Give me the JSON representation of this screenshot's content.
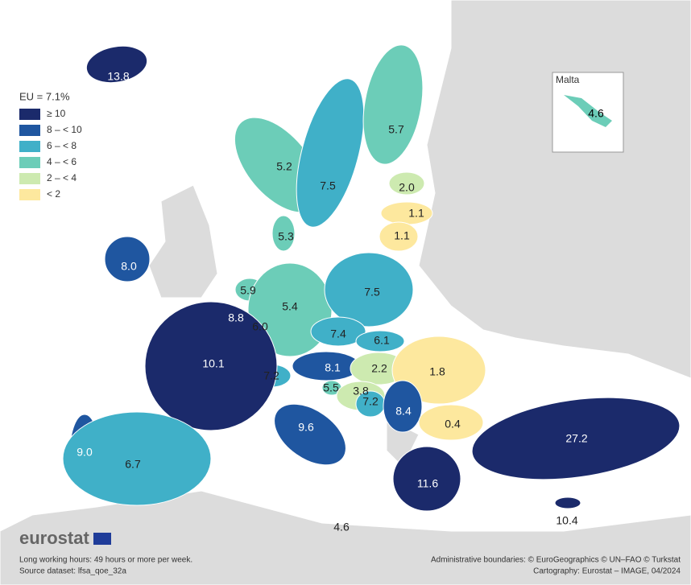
{
  "legend": {
    "title": "EU = 7.1%",
    "classes": [
      {
        "label": "≥ 10",
        "color": "#1b2a6b"
      },
      {
        "label": "8 – < 10",
        "color": "#1f56a0"
      },
      {
        "label": "6 – < 8",
        "color": "#40b0c8"
      },
      {
        "label": "4 – < 6",
        "color": "#6ccdb8"
      },
      {
        "label": "2 – < 4",
        "color": "#cdeab0"
      },
      {
        "label": "< 2",
        "color": "#fde89e"
      }
    ]
  },
  "regions": [
    {
      "value": "13.8",
      "color": "#1b2a6b"
    },
    {
      "value": "5.2",
      "color": "#6ccdb8"
    },
    {
      "value": "7.5",
      "color": "#40b0c8"
    },
    {
      "value": "5.7",
      "color": "#6ccdb8"
    },
    {
      "value": "2.0",
      "color": "#cdeab0"
    },
    {
      "value": "1.1",
      "color": "#fde89e"
    },
    {
      "value": "1.1",
      "color": "#fde89e"
    },
    {
      "value": "5.3",
      "color": "#6ccdb8"
    },
    {
      "value": "8.0",
      "color": "#1f56a0"
    },
    {
      "value": "5.9",
      "color": "#6ccdb8"
    },
    {
      "value": "8.8",
      "color": "#1f56a0"
    },
    {
      "value": "6.0",
      "color": "#40b0c8"
    },
    {
      "value": "5.4",
      "color": "#6ccdb8"
    },
    {
      "value": "7.5",
      "color": "#40b0c8"
    },
    {
      "value": "7.4",
      "color": "#40b0c8"
    },
    {
      "value": "6.1",
      "color": "#40b0c8"
    },
    {
      "value": "8.1",
      "color": "#1f56a0"
    },
    {
      "value": "2.2",
      "color": "#cdeab0"
    },
    {
      "value": "1.8",
      "color": "#fde89e"
    },
    {
      "value": "7.2",
      "color": "#40b0c8"
    },
    {
      "value": "5.5",
      "color": "#6ccdb8"
    },
    {
      "value": "3.8",
      "color": "#cdeab0"
    },
    {
      "value": "7.2",
      "color": "#40b0c8"
    },
    {
      "value": "8.4",
      "color": "#1f56a0"
    },
    {
      "value": "0.4",
      "color": "#fde89e"
    },
    {
      "value": "10.1",
      "color": "#1b2a6b"
    },
    {
      "value": "9.6",
      "color": "#1f56a0"
    },
    {
      "value": "9.0",
      "color": "#1f56a0"
    },
    {
      "value": "6.7",
      "color": "#40b0c8"
    },
    {
      "value": "11.6",
      "color": "#1b2a6b"
    },
    {
      "value": "27.2",
      "color": "#1b2a6b"
    },
    {
      "value": "10.4",
      "color": "#1b2a6b"
    }
  ],
  "inset": {
    "title": "Malta",
    "value": "4.6",
    "color": "#6ccdb8"
  },
  "logo": "eurostat",
  "footer": {
    "note": "Long working hours: 49 hours or more per week.",
    "source": "Source dataset: lfsa_qoe_32a",
    "boundaries": "Administrative boundaries: © EuroGeographics © UN–FAO © Turkstat",
    "cartography": "Cartography: Eurostat – IMAGE, 04/2024"
  }
}
